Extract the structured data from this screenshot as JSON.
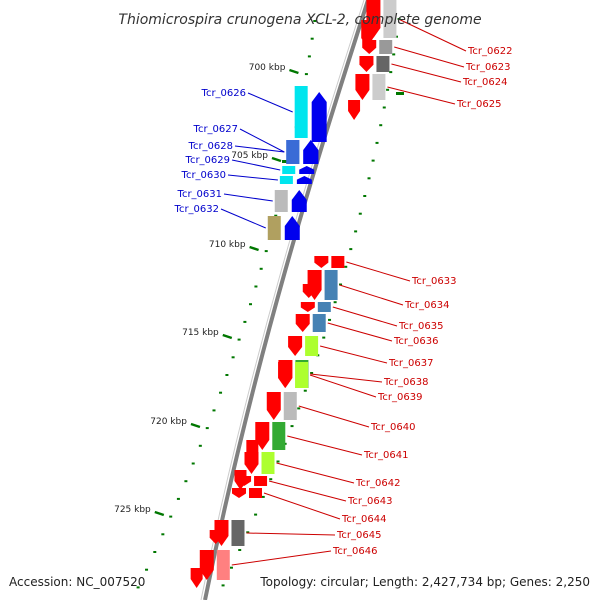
{
  "genome": {
    "title": "Thiomicrospira crunogena XCL-2, complete genome",
    "accession": "Accession: NC_007520",
    "topology": "Topology: circular; Length: 2,427,734 bp; Genes: 2,250"
  },
  "colors": {
    "plus_label": "#0000cc",
    "minus_label": "#cc0000",
    "backbone": "#808080",
    "tick": "#007700",
    "gene_red": "#ff0000",
    "gene_blue": "#0000ee"
  },
  "scale": {
    "ticks": [
      {
        "label": "700 kbp"
      },
      {
        "label": "705 kbp"
      },
      {
        "label": "710 kbp"
      },
      {
        "label": "715 kbp"
      },
      {
        "label": "720 kbp"
      },
      {
        "label": "725 kbp"
      }
    ]
  },
  "genes_plus": [
    {
      "name": "Tcr_0626",
      "color": "#00e5ee"
    },
    {
      "name": "Tcr_0627",
      "color": "#3a6bd6"
    },
    {
      "name": "Tcr_0628",
      "color": "#3a6bd6"
    },
    {
      "name": "Tcr_0629",
      "color": "#00e5ee"
    },
    {
      "name": "Tcr_0630",
      "color": "#00e5ee"
    },
    {
      "name": "Tcr_0631",
      "color": "#bbbbbb"
    },
    {
      "name": "Tcr_0632",
      "color": "#b0a060"
    }
  ],
  "genes_minus": [
    {
      "name": "Tcr_0622",
      "color": "#cccccc"
    },
    {
      "name": "Tcr_0623",
      "color": "#999999"
    },
    {
      "name": "Tcr_0624",
      "color": "#666666"
    },
    {
      "name": "Tcr_0625",
      "color": "#cccccc"
    },
    {
      "name": "Tcr_0633",
      "color": "#ff0000"
    },
    {
      "name": "Tcr_0634",
      "color": "#4682b4"
    },
    {
      "name": "Tcr_0635",
      "color": "#4682b4"
    },
    {
      "name": "Tcr_0636",
      "color": "#4682b4"
    },
    {
      "name": "Tcr_0637",
      "color": "#adff2f"
    },
    {
      "name": "Tcr_0638",
      "color": "#33aa33"
    },
    {
      "name": "Tcr_0639",
      "color": "#adff2f"
    },
    {
      "name": "Tcr_0640",
      "color": "#bbbbbb"
    },
    {
      "name": "Tcr_0641",
      "color": "#33aa33"
    },
    {
      "name": "Tcr_0642",
      "color": "#adff2f"
    },
    {
      "name": "Tcr_0643",
      "color": "#ff0000"
    },
    {
      "name": "Tcr_0644",
      "color": "#ff0000"
    },
    {
      "name": "Tcr_0645",
      "color": "#666666"
    },
    {
      "name": "Tcr_0646",
      "color": "#ff8080"
    }
  ]
}
